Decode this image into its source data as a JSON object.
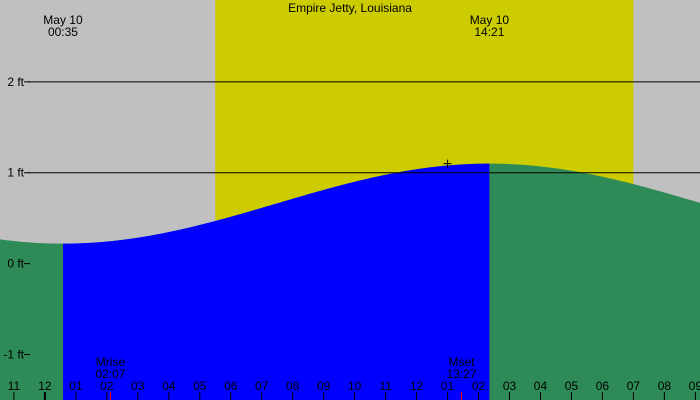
{
  "chart_data": {
    "type": "area",
    "title": "Empire Jetty, Louisiana",
    "y_unit": "ft",
    "ylim": [
      -1.5,
      2.9
    ],
    "xlim_hours": [
      -1.45,
      21.15
    ],
    "y_ticks": [
      {
        "value": 2,
        "label": "2 ft"
      },
      {
        "value": 1,
        "label": "1 ft"
      },
      {
        "value": 0,
        "label": "0 ft"
      },
      {
        "value": -1,
        "label": "-1 ft"
      }
    ],
    "reference_lines": [
      2,
      1
    ],
    "hour_ticks": [
      {
        "hour": -1,
        "label": "11"
      },
      {
        "hour": 0,
        "label": "12"
      },
      {
        "hour": 1,
        "label": "01"
      },
      {
        "hour": 2,
        "label": "02"
      },
      {
        "hour": 3,
        "label": "03"
      },
      {
        "hour": 4,
        "label": "04"
      },
      {
        "hour": 5,
        "label": "05"
      },
      {
        "hour": 6,
        "label": "06"
      },
      {
        "hour": 7,
        "label": "07"
      },
      {
        "hour": 8,
        "label": "08"
      },
      {
        "hour": 9,
        "label": "09"
      },
      {
        "hour": 10,
        "label": "10"
      },
      {
        "hour": 11,
        "label": "11"
      },
      {
        "hour": 12,
        "label": "12"
      },
      {
        "hour": 13,
        "label": "01"
      },
      {
        "hour": 14,
        "label": "02"
      },
      {
        "hour": 15,
        "label": "03"
      },
      {
        "hour": 16,
        "label": "04"
      },
      {
        "hour": 17,
        "label": "05"
      },
      {
        "hour": 18,
        "label": "06"
      },
      {
        "hour": 19,
        "label": "07"
      },
      {
        "hour": 20,
        "label": "08"
      },
      {
        "hour": 21,
        "label": "09"
      }
    ],
    "daylight_hours": [
      5.5,
      19.0
    ],
    "extremes": [
      {
        "date": "May 10",
        "time": "00:35",
        "hour": 0.583,
        "height": 0.22
      },
      {
        "date": "May 10",
        "time": "14:21",
        "hour": 14.35,
        "height": 1.1
      }
    ],
    "highlight_interval_hours": [
      0.583,
      14.35
    ],
    "tide_curve": {
      "start_hour": -1.45,
      "end_hour": 21.15,
      "low_height": 0.22,
      "high_height": 1.1
    },
    "moon_events": [
      {
        "label": "Mrise",
        "time": "02:07",
        "hour": 2.117
      },
      {
        "label": "Mset",
        "time": "13:27",
        "hour": 13.45
      }
    ],
    "current_marker": {
      "hour": 13.0,
      "height": 1.1
    },
    "colors": {
      "night": "#c0c0c0",
      "daylight": "#cccc00",
      "tide": "#2e8b57",
      "highlight": "#0000ff",
      "moon_tick": "#ff0000"
    }
  }
}
